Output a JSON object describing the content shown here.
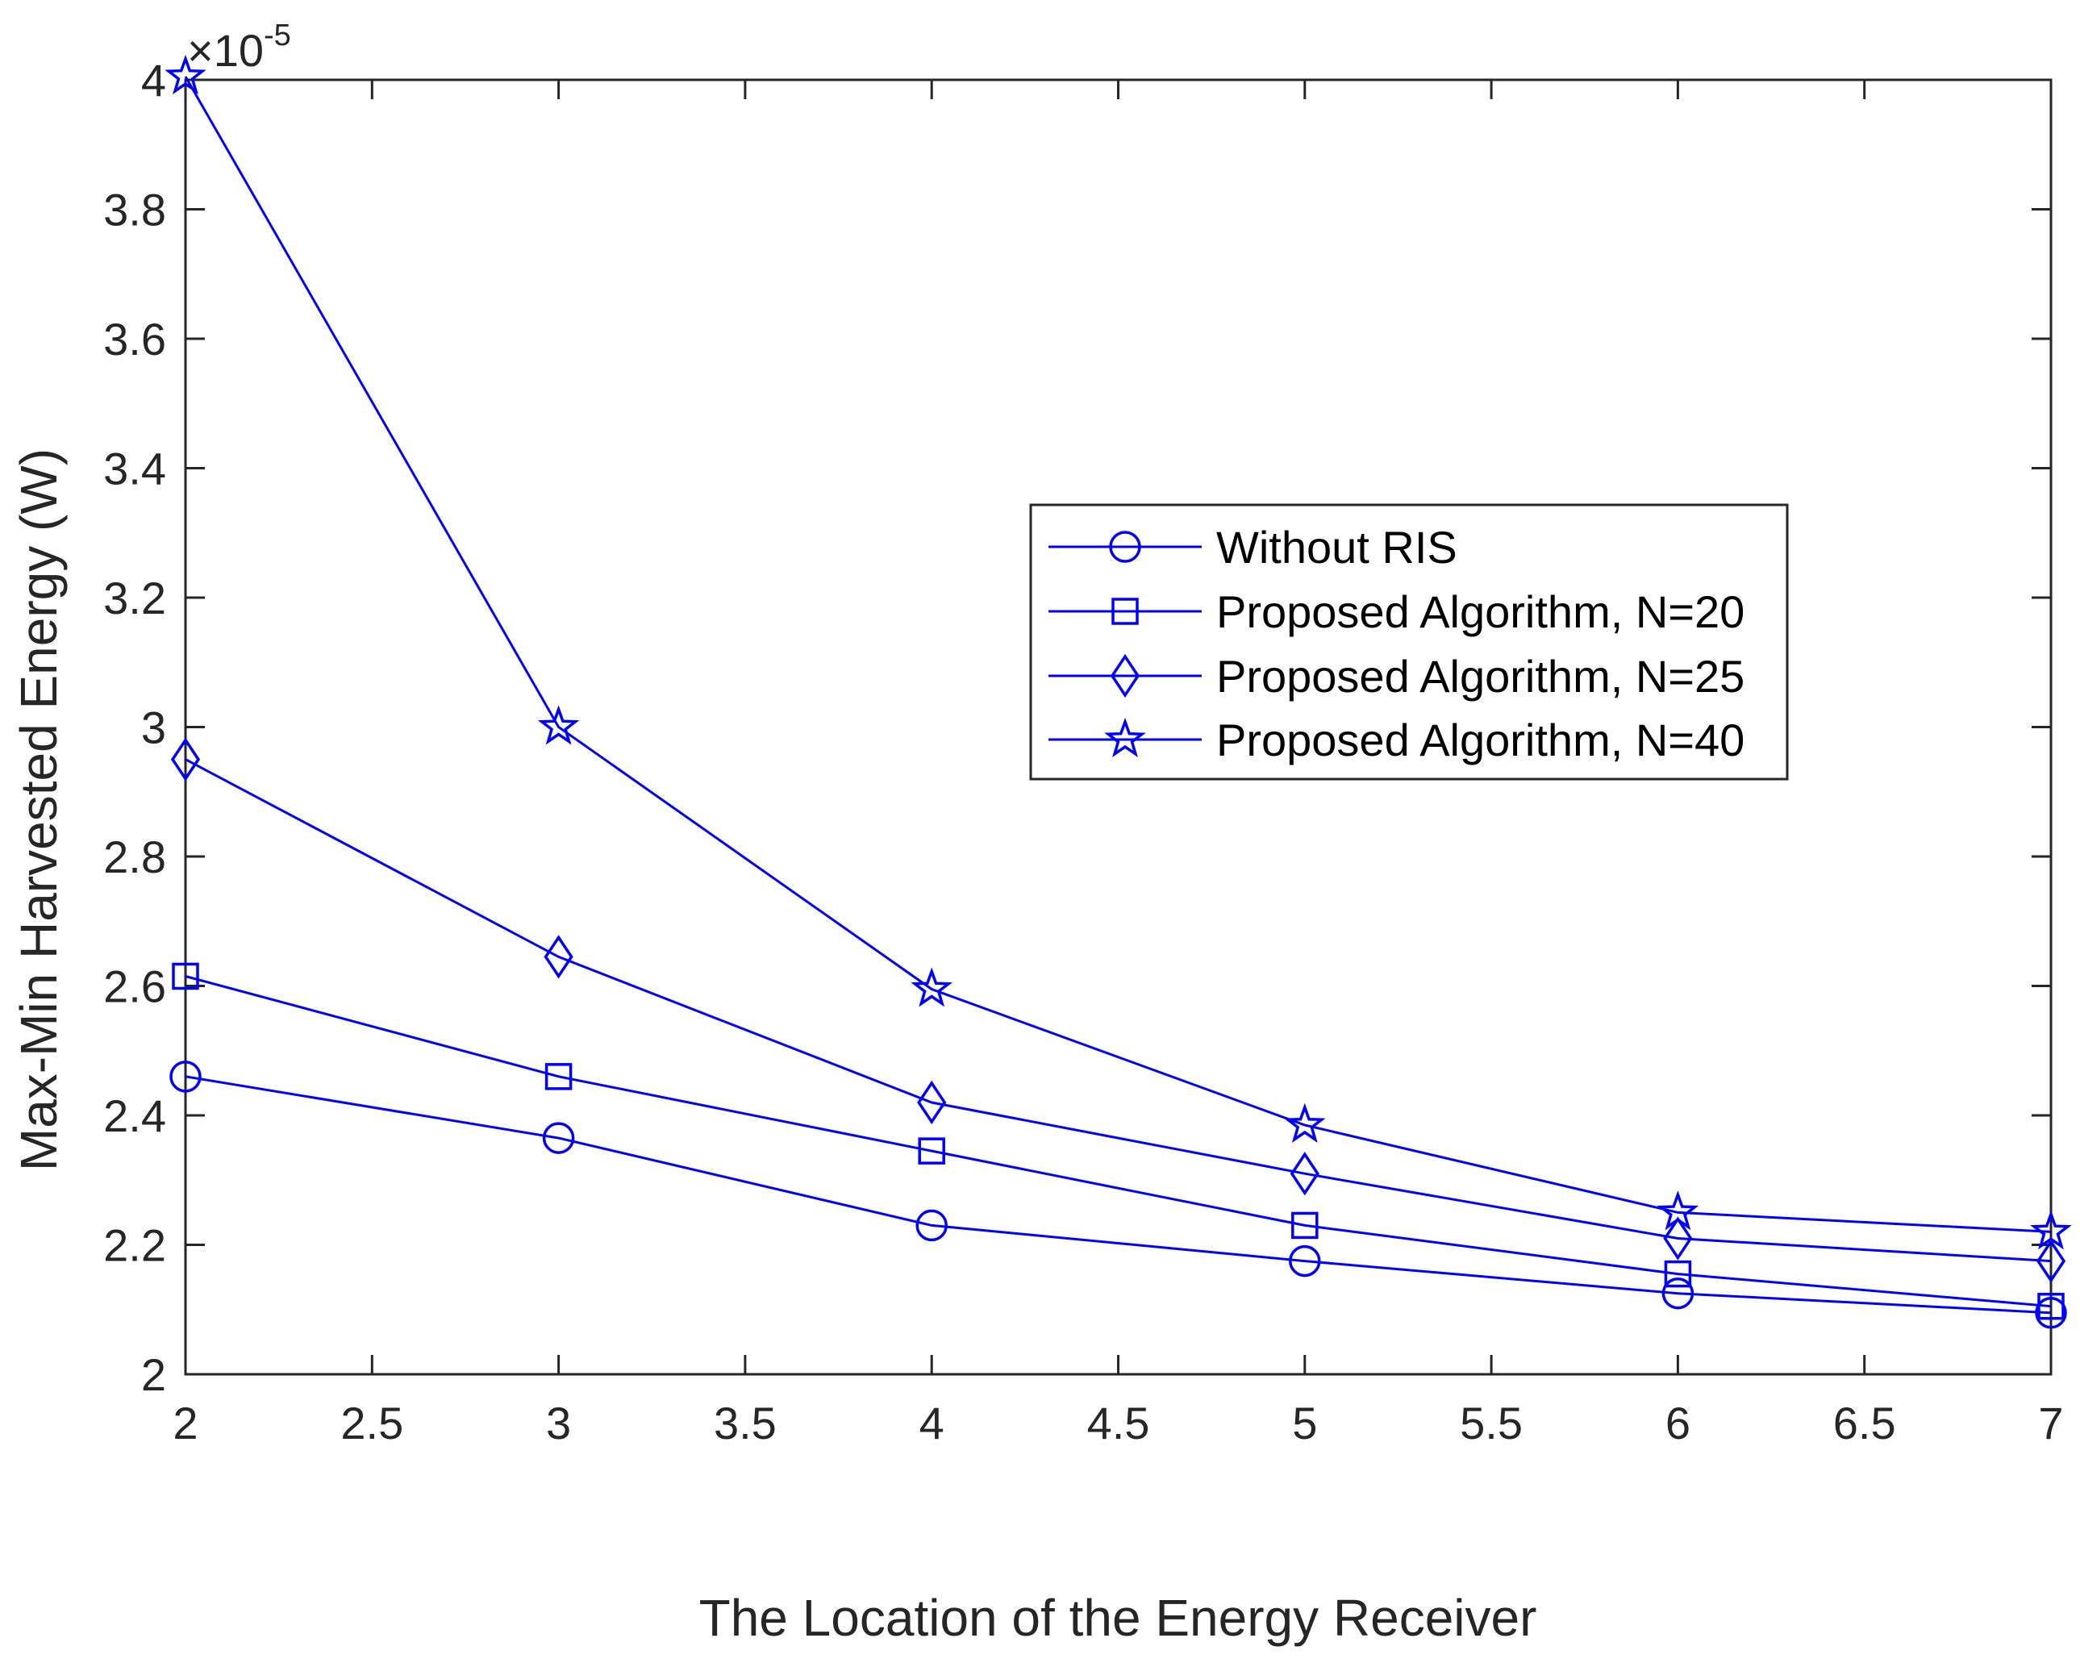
{
  "chart_data": {
    "type": "line",
    "xlabel": "The Location of the Energy Receiver",
    "ylabel": "Max-Min Harvested Energy (W)",
    "y_multiplier": {
      "prefix": "×10",
      "exponent": "-5"
    },
    "xlim": [
      2,
      7
    ],
    "ylim": [
      2,
      4
    ],
    "x_ticks": [
      "2",
      "2.5",
      "3",
      "3.5",
      "4",
      "4.5",
      "5",
      "5.5",
      "6",
      "6.5",
      "7"
    ],
    "y_ticks": [
      "2",
      "2.2",
      "2.4",
      "2.6",
      "2.8",
      "3",
      "3.2",
      "3.4",
      "3.6",
      "3.8",
      "4"
    ],
    "x": [
      2,
      3,
      4,
      5,
      6,
      7
    ],
    "series": [
      {
        "name": "Without RIS",
        "marker": "circle",
        "values": [
          2.46,
          2.365,
          2.23,
          2.175,
          2.125,
          2.095
        ]
      },
      {
        "name": "Proposed Algorithm, N=20",
        "marker": "square",
        "values": [
          2.615,
          2.46,
          2.345,
          2.23,
          2.155,
          2.105
        ]
      },
      {
        "name": "Proposed Algorithm, N=25",
        "marker": "diamond",
        "values": [
          2.95,
          2.645,
          2.42,
          2.31,
          2.21,
          2.175
        ]
      },
      {
        "name": "Proposed Algorithm, N=40",
        "marker": "star",
        "values": [
          4.005,
          3.0,
          2.595,
          2.385,
          2.25,
          2.22
        ]
      }
    ],
    "line_color": "#0000ff",
    "grid": false,
    "legend_position": "center-right"
  }
}
